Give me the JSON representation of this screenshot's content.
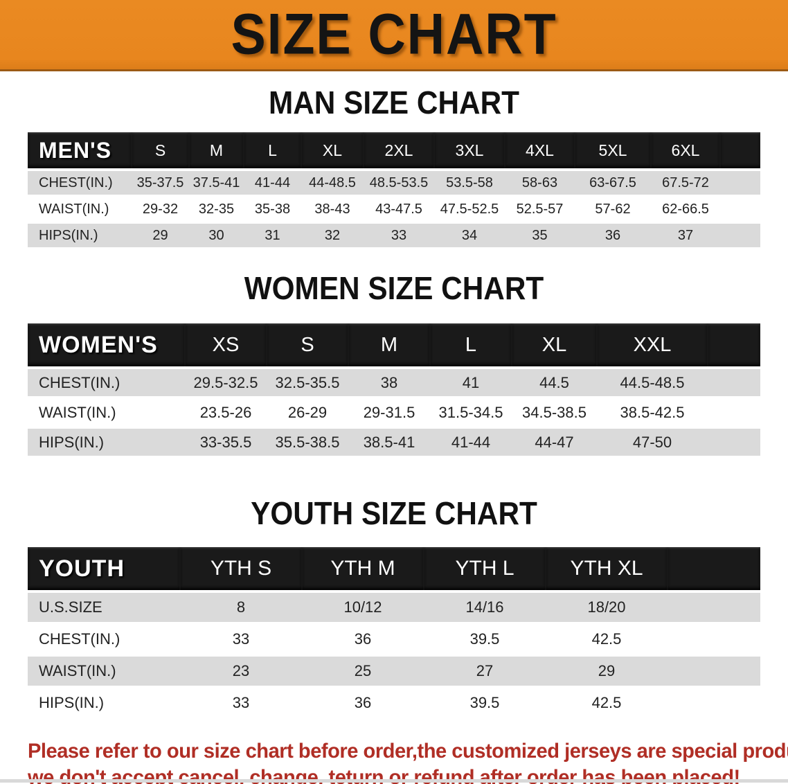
{
  "banner": {
    "title": "SIZE CHART",
    "bg_color": "#E8861E",
    "text_color": "#141414"
  },
  "tables": [
    {
      "id": "men",
      "heading": "MAN SIZE CHART",
      "header_label": "MEN'S",
      "sizes": [
        "S",
        "M",
        "L",
        "XL",
        "2XL",
        "3XL",
        "4XL",
        "5XL",
        "6XL"
      ],
      "rows": [
        {
          "label": "CHEST(IN.)",
          "values": [
            "35-37.5",
            "37.5-41",
            "41-44",
            "44-48.5",
            "48.5-53.5",
            "53.5-58",
            "58-63",
            "63-67.5",
            "67.5-72"
          ]
        },
        {
          "label": "WAIST(IN.)",
          "values": [
            "29-32",
            "32-35",
            "35-38",
            "38-43",
            "43-47.5",
            "47.5-52.5",
            "52.5-57",
            "57-62",
            "62-66.5"
          ]
        },
        {
          "label": "HIPS(IN.)",
          "values": [
            "29",
            "30",
            "31",
            "32",
            "33",
            "34",
            "35",
            "36",
            "37"
          ]
        }
      ]
    },
    {
      "id": "women",
      "heading": "WOMEN SIZE CHART",
      "header_label": "WOMEN'S",
      "sizes": [
        "XS",
        "S",
        "M",
        "L",
        "XL",
        "XXL"
      ],
      "rows": [
        {
          "label": "CHEST(IN.)",
          "values": [
            "29.5-32.5",
            "32.5-35.5",
            "38",
            "41",
            "44.5",
            "44.5-48.5"
          ]
        },
        {
          "label": "WAIST(IN.)",
          "values": [
            "23.5-26",
            "26-29",
            "29-31.5",
            "31.5-34.5",
            "34.5-38.5",
            "38.5-42.5"
          ]
        },
        {
          "label": "HIPS(IN.)",
          "values": [
            "33-35.5",
            "35.5-38.5",
            "38.5-41",
            "41-44",
            "44-47",
            "47-50"
          ]
        }
      ]
    },
    {
      "id": "youth",
      "heading": "YOUTH SIZE CHART",
      "header_label": "YOUTH",
      "sizes": [
        "YTH S",
        "YTH M",
        "YTH L",
        "YTH XL"
      ],
      "rows": [
        {
          "label": "U.S.SIZE",
          "values": [
            "8",
            "10/12",
            "14/16",
            "18/20"
          ]
        },
        {
          "label": "CHEST(IN.)",
          "values": [
            "33",
            "36",
            "39.5",
            "42.5"
          ]
        },
        {
          "label": "WAIST(IN.)",
          "values": [
            "23",
            "25",
            "27",
            "29"
          ]
        },
        {
          "label": "HIPS(IN.)",
          "values": [
            "33",
            "36",
            "39.5",
            "42.5"
          ]
        }
      ]
    }
  ],
  "disclaimer": {
    "line1": "Please refer to our size chart before order,the customized jerseys are special products,",
    "line2": "we don't accept cancel, change, teturn or refund after order has been placed!",
    "color": "#B02E25"
  },
  "row_stripe_color": "#DADADA",
  "table_header_color": "#1A1A1A"
}
